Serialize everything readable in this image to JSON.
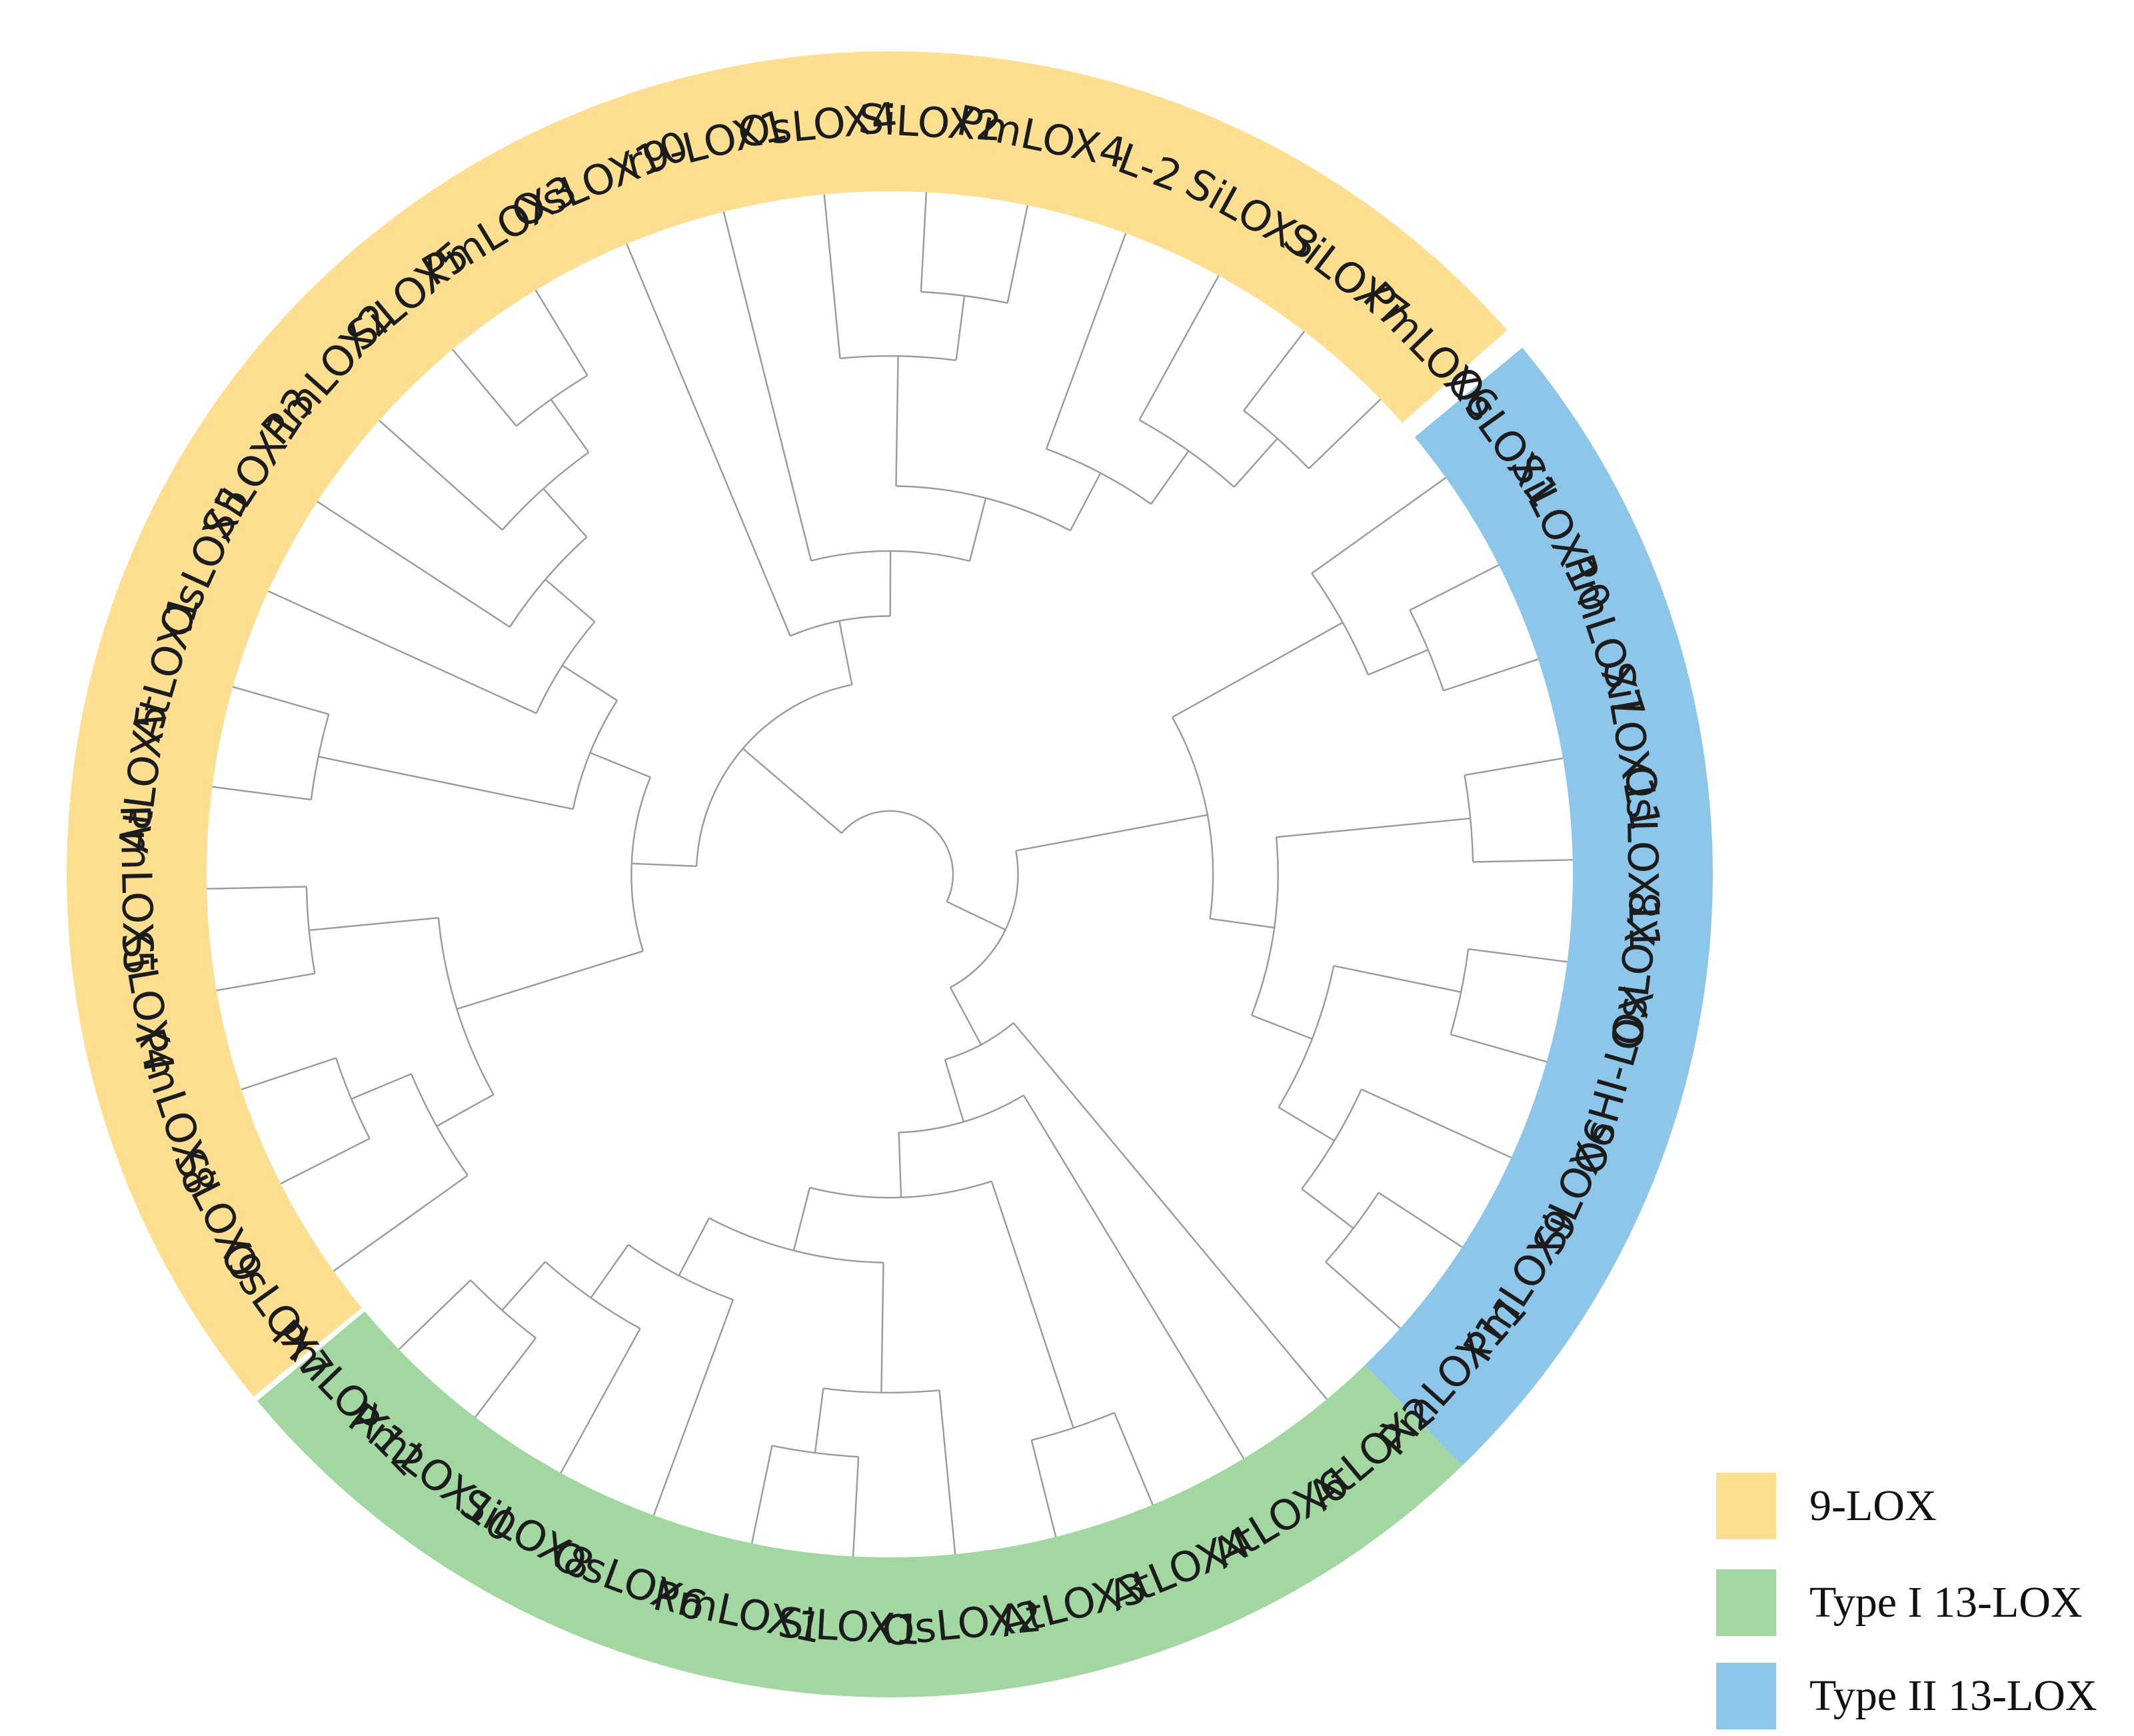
{
  "colors": {
    "nine_lox": "#fedf92",
    "type_one": "#a2d7a2",
    "type_two": "#8ec6ea",
    "branch": "#9a9a9a"
  },
  "groups": [
    {
      "id": "nine_lox",
      "color": "#fedf92"
    },
    {
      "id": "type_one",
      "color": "#a2d7a2"
    },
    {
      "id": "type_two",
      "color": "#8ec6ea"
    }
  ],
  "legend": [
    {
      "label": "9-LOX",
      "color": "#fedf92"
    },
    {
      "label": "Type I  13-LOX",
      "color": "#a2d7a2"
    },
    {
      "label": "Type II  13-LOX",
      "color": "#8ec6ea"
    }
  ],
  "tips": [
    {
      "label": "OsLOX7",
      "group": "nine_lox"
    },
    {
      "label": "SiLOX9",
      "group": "nine_lox"
    },
    {
      "label": "PmLOX8",
      "group": "nine_lox"
    },
    {
      "label": "SiLOX4",
      "group": "nine_lox"
    },
    {
      "label": "PmLOX5",
      "group": "nine_lox"
    },
    {
      "label": "AtLOX5",
      "group": "nine_lox"
    },
    {
      "label": "AtLOX1",
      "group": "nine_lox"
    },
    {
      "label": "OsLOX5",
      "group": "nine_lox"
    },
    {
      "label": "SiLOX13",
      "group": "nine_lox"
    },
    {
      "label": "PmLOX2",
      "group": "nine_lox"
    },
    {
      "label": "SiLOX5",
      "group": "nine_lox"
    },
    {
      "label": "PmLOX3",
      "group": "nine_lox"
    },
    {
      "label": "OsLOX10",
      "group": "nine_lox"
    },
    {
      "label": "r9-LOX1",
      "group": "nine_lox"
    },
    {
      "label": "OsLOX4",
      "group": "nine_lox"
    },
    {
      "label": "SiLOX2",
      "group": "nine_lox"
    },
    {
      "label": "PmLOX4",
      "group": "nine_lox"
    },
    {
      "label": "L-2",
      "group": "nine_lox"
    },
    {
      "label": "SiLOX3",
      "group": "nine_lox"
    },
    {
      "label": "SiLOX7",
      "group": "nine_lox"
    },
    {
      "label": "PmLOX6",
      "group": "nine_lox"
    },
    {
      "label": "OsLOX1",
      "group": "type_two"
    },
    {
      "label": "SiLOX10",
      "group": "type_two"
    },
    {
      "label": "PmLOX7",
      "group": "type_two"
    },
    {
      "label": "SiLOX11",
      "group": "type_two"
    },
    {
      "label": "OsLOX11",
      "group": "type_two"
    },
    {
      "label": "OsLOX8",
      "group": "type_two"
    },
    {
      "label": "OsHI-LOX",
      "group": "type_two"
    },
    {
      "label": "SiLOX6",
      "group": "type_two"
    },
    {
      "label": "PmLOX9",
      "group": "type_two"
    },
    {
      "label": "PmLOX11",
      "group": "type_two"
    },
    {
      "label": "AtLOX2",
      "group": "type_one"
    },
    {
      "label": "AtLOX6",
      "group": "type_one"
    },
    {
      "label": "AtLOX4",
      "group": "type_one"
    },
    {
      "label": "AtLOX3",
      "group": "type_one"
    },
    {
      "label": "OsLOX2",
      "group": "type_one"
    },
    {
      "label": "SiLOX1",
      "group": "type_one"
    },
    {
      "label": "PmLOX1",
      "group": "type_one"
    },
    {
      "label": "OsLOX6",
      "group": "type_one"
    },
    {
      "label": "SiLOX8",
      "group": "type_one"
    },
    {
      "label": "PmLOX10",
      "group": "type_one"
    },
    {
      "label": "PmLOX12",
      "group": "type_one"
    }
  ],
  "topology": [
    "clade_all",
    [
      "clade_9lox",
      [
        "clade_9a",
        [
          [
            "OsLOX7",
            [
              "SiLOX9",
              "PmLOX8"
            ]
          ],
          [
            "SiLOX4",
            "PmLOX5"
          ]
        ],
        [
          [
            "AtLOX5",
            "AtLOX1"
          ],
          [
            "OsLOX5",
            [
              "SiLOX13",
              [
                "PmLOX2",
                [
                  "SiLOX5",
                  "PmLOX3"
                ]
              ]
            ]
          ]
        ]
      ],
      [
        "clade_9b",
        "OsLOX10",
        [
          "r9-LOX1",
          [
            [
              "OsLOX4",
              [
                "SiLOX2",
                "PmLOX4"
              ]
            ],
            [
              "L-2",
              [
                "SiLOX3",
                [
                  "SiLOX7",
                  "PmLOX6"
                ]
              ]
            ]
          ]
        ]
      ]
    ],
    [
      "clade_13",
      [
        "clade_typeII",
        [
          [
            "OsLOX1",
            [
              "SiLOX10",
              "PmLOX7"
            ]
          ]
        ],
        [
          [
            "SiLOX11",
            "OsLOX11"
          ],
          [
            [
              "OsLOX8",
              "OsHI-LOX"
            ],
            [
              "SiLOX6",
              [
                "PmLOX9",
                "PmLOX11"
              ]
            ]
          ]
        ]
      ],
      [
        "clade_typeI",
        "AtLOX2",
        [
          "AtLOX6",
          [
            [
              "AtLOX4",
              "AtLOX3"
            ],
            [
              [
                "OsLOX2",
                [
                  "SiLOX1",
                  "PmLOX1"
                ]
              ],
              [
                "OsLOX6",
                [
                  "SiLOX8",
                  [
                    "PmLOX10",
                    "PmLOX12"
                  ]
                ]
              ]
            ]
          ]
        ]
      ]
    ]
  ]
}
